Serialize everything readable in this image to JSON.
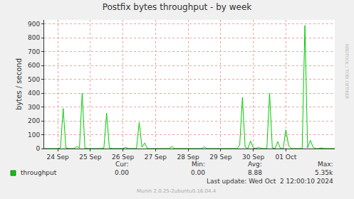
{
  "chart_data": {
    "type": "line",
    "title": "Postfix bytes throughput - by week",
    "y_label": "bytes / second",
    "categories": [
      null,
      null,
      null,
      null,
      null,
      "24 Sep",
      null,
      null,
      null,
      null,
      null,
      null,
      null,
      null,
      null,
      null,
      null,
      "25 Sep",
      null,
      null,
      null,
      null,
      null,
      null,
      null,
      null,
      null,
      null,
      null,
      "26 Sep",
      null,
      null,
      null,
      null,
      null,
      null,
      null,
      null,
      null,
      null,
      null,
      "27 Sep",
      null,
      null,
      null,
      null,
      null,
      null,
      null,
      null,
      null,
      null,
      null,
      "28 Sep",
      null,
      null,
      null,
      null,
      null,
      null,
      null,
      null,
      null,
      null,
      null,
      "29 Sep",
      null,
      null,
      null,
      null,
      null,
      null,
      null,
      null,
      null,
      null,
      null,
      "30 Sep",
      null,
      null,
      null,
      null,
      null,
      null,
      null,
      null,
      null,
      null,
      null,
      "01 Oct",
      null,
      null,
      null,
      null,
      null,
      null,
      null,
      null,
      null,
      null,
      null,
      null,
      null,
      null,
      null,
      null,
      null,
      null
    ],
    "series": [
      {
        "name": "throughput",
        "color": "#00cc00",
        "values": [
          0,
          0,
          0,
          0,
          0,
          0,
          5,
          290,
          5,
          0,
          0,
          0,
          15,
          5,
          400,
          5,
          0,
          0,
          0,
          0,
          0,
          0,
          5,
          255,
          5,
          0,
          0,
          0,
          0,
          0,
          10,
          0,
          0,
          0,
          0,
          190,
          10,
          40,
          0,
          0,
          0,
          0,
          0,
          0,
          0,
          0,
          0,
          15,
          0,
          0,
          0,
          0,
          0,
          0,
          0,
          0,
          0,
          0,
          0,
          12,
          0,
          0,
          0,
          0,
          0,
          0,
          0,
          0,
          0,
          0,
          0,
          0,
          25,
          370,
          10,
          0,
          55,
          5,
          0,
          10,
          0,
          0,
          0,
          400,
          5,
          0,
          50,
          0,
          0,
          135,
          20,
          0,
          0,
          0,
          0,
          0,
          890,
          5,
          60,
          10,
          0,
          0,
          5,
          0,
          0,
          0,
          0,
          0
        ]
      }
    ],
    "ylim": [
      0,
      930
    ],
    "yticks": [
      0,
      100,
      200,
      300,
      400,
      500,
      600,
      700,
      800,
      900
    ],
    "grid": true,
    "stats_headers": [
      "Cur:",
      "Min:",
      "Avg:",
      "Max:"
    ],
    "stats_values": [
      "0.00",
      "0.00",
      "8.88",
      "5.35k"
    ],
    "last_update": "Last update: Wed Oct  2 12:00:10 2024",
    "footer": "Munin 2.0.25-2ubuntu0.16.04.4",
    "watermark": "RRDTOOL / TOBI OETIKER"
  }
}
